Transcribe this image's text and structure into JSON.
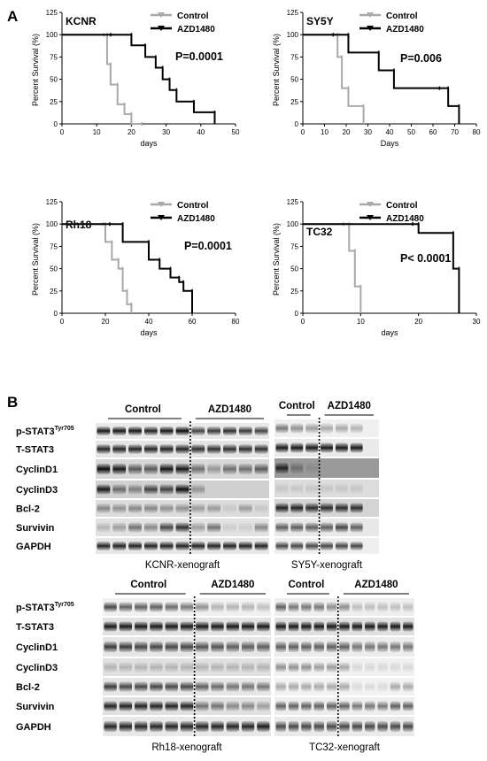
{
  "panel_a_label": "A",
  "panel_b_label": "B",
  "survival_common": {
    "ylabel": "Percent Survival (%)",
    "legend": [
      "Control",
      "AZD1480"
    ],
    "colors": {
      "control": "#a9a9a9",
      "azd": "#000000"
    }
  },
  "chart_data": [
    {
      "type": "line",
      "title": "KCNR",
      "xlabel": "days",
      "ylabel": "Percent Survival (%)",
      "xlim": [
        0,
        50
      ],
      "ylim": [
        0,
        125
      ],
      "xticks": [
        0,
        10,
        20,
        30,
        40,
        50
      ],
      "yticks": [
        0,
        25,
        50,
        75,
        100,
        125
      ],
      "pvalue": "P=0.0001",
      "series": [
        {
          "name": "Control",
          "x": [
            0,
            12,
            13,
            14,
            16,
            18,
            20,
            23
          ],
          "y": [
            100,
            100,
            67,
            44,
            22,
            11,
            0,
            0
          ]
        },
        {
          "name": "AZD1480",
          "x": [
            0,
            14,
            20,
            24,
            27,
            29,
            31,
            33,
            38,
            44
          ],
          "y": [
            100,
            100,
            88,
            75,
            63,
            50,
            38,
            25,
            13,
            0
          ]
        }
      ]
    },
    {
      "type": "line",
      "title": "SY5Y",
      "xlabel": "Days",
      "ylabel": "Percent Survival (%)",
      "xlim": [
        0,
        80
      ],
      "ylim": [
        0,
        125
      ],
      "xticks": [
        0,
        10,
        20,
        30,
        40,
        50,
        60,
        70,
        80
      ],
      "yticks": [
        0,
        25,
        50,
        75,
        100,
        125
      ],
      "pvalue": "P=0.006",
      "series": [
        {
          "name": "Control",
          "x": [
            0,
            14,
            16,
            18,
            21,
            28
          ],
          "y": [
            100,
            100,
            75,
            40,
            20,
            0
          ]
        },
        {
          "name": "AZD1480",
          "x": [
            0,
            14,
            21,
            35,
            42,
            63,
            67,
            72
          ],
          "y": [
            100,
            100,
            80,
            60,
            40,
            40,
            20,
            0
          ]
        }
      ]
    },
    {
      "type": "line",
      "title": "Rh18",
      "xlabel": "days",
      "ylabel": "Percent Survival (%)",
      "xlim": [
        0,
        80
      ],
      "ylim": [
        0,
        125
      ],
      "xticks": [
        0,
        20,
        40,
        60,
        80
      ],
      "yticks": [
        0,
        25,
        50,
        75,
        100,
        125
      ],
      "pvalue": "P=0.0001",
      "series": [
        {
          "name": "Control",
          "x": [
            0,
            19,
            20,
            23,
            26,
            28,
            30,
            32
          ],
          "y": [
            100,
            100,
            80,
            60,
            50,
            25,
            10,
            0
          ]
        },
        {
          "name": "AZD1480",
          "x": [
            0,
            22,
            28,
            40,
            45,
            50,
            54,
            56,
            60
          ],
          "y": [
            100,
            100,
            80,
            60,
            50,
            40,
            35,
            25,
            0
          ]
        }
      ]
    },
    {
      "type": "line",
      "title": "TC32",
      "xlabel": "days",
      "ylabel": "Percent Survival (%)",
      "xlim": [
        0,
        30
      ],
      "ylim": [
        0,
        125
      ],
      "xticks": [
        0,
        10,
        20,
        30
      ],
      "yticks": [
        0,
        25,
        50,
        75,
        100,
        125
      ],
      "pvalue": "P< 0.0001",
      "series": [
        {
          "name": "Control",
          "x": [
            0,
            7,
            8,
            9,
            10
          ],
          "y": [
            100,
            100,
            70,
            30,
            0
          ]
        },
        {
          "name": "AZD1480",
          "x": [
            0,
            19,
            20,
            26,
            27
          ],
          "y": [
            100,
            100,
            90,
            50,
            0
          ]
        }
      ]
    }
  ],
  "blots": [
    {
      "control_label": "Control",
      "azd_label": "AZD1480",
      "caption": "KCNR-xenograft",
      "rows": [
        "p-STAT3",
        "T-STAT3",
        "CyclinD1",
        "CyclinD3",
        "Bcl-2",
        "Survivin",
        "GAPDH"
      ],
      "sup": "Tyr705"
    },
    {
      "control_label": "Control",
      "azd_label": "AZD1480",
      "caption": "SY5Y-xenograft"
    },
    {
      "control_label": "Control",
      "azd_label": "AZD1480",
      "caption": "Rh18-xenograft",
      "rows": [
        "p-STAT3",
        "T-STAT3",
        "CyclinD1",
        "CyclinD3",
        "Bcl-2",
        "Survivin",
        "GAPDH"
      ],
      "sup": "Tyr705"
    },
    {
      "control_label": "Control",
      "azd_label": "AZD1480",
      "caption": "TC32-xenograft"
    }
  ]
}
